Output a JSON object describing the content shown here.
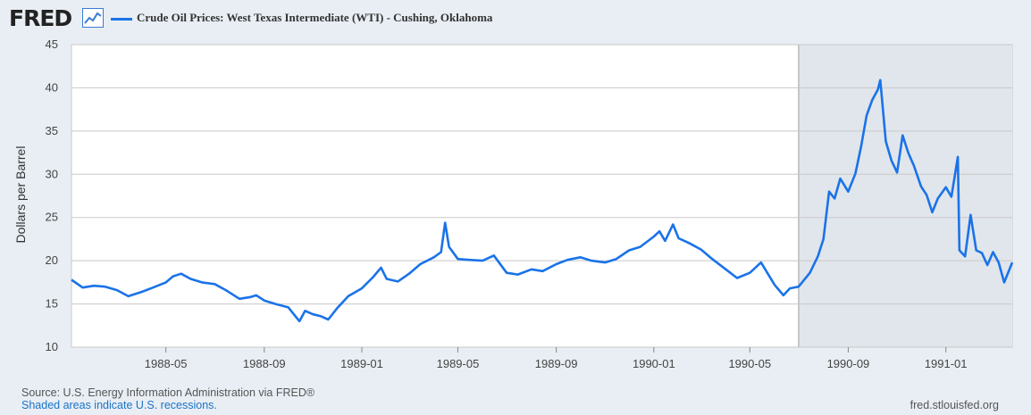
{
  "header": {
    "logo_text": "FRED",
    "logo_icon": "line-chart-icon",
    "legend_label": "Crude Oil Prices: West Texas Intermediate (WTI) - Cushing, Oklahoma"
  },
  "footer": {
    "source": "Source: U.S. Energy Information Administration via FRED®",
    "recession_note": "Shaded areas indicate U.S. recessions.",
    "site": "fred.stlouisfed.org"
  },
  "colors": {
    "series": "#1a73e8",
    "recession_shade": "#e1e6ec",
    "plot_bg": "#ffffff",
    "grid": "#c8c8c8"
  },
  "chart_data": {
    "type": "line",
    "title": "",
    "xlabel": "",
    "ylabel": "Dollars per Barrel",
    "xlim": [
      "1988-01-04",
      "1991-03-25"
    ],
    "ylim": [
      10,
      45
    ],
    "yticks": [
      10,
      15,
      20,
      25,
      30,
      35,
      40,
      45
    ],
    "xtick_labels": [
      "1988-05",
      "1988-09",
      "1989-01",
      "1989-05",
      "1989-09",
      "1990-01",
      "1990-05",
      "1990-09",
      "1991-01"
    ],
    "grid": true,
    "legend_position": "top-left",
    "recessions": [
      {
        "start": "1990-07-01",
        "end": "1991-03-25"
      }
    ],
    "series": [
      {
        "name": "Crude Oil Prices: West Texas Intermediate (WTI) - Cushing, Oklahoma",
        "points": [
          [
            "1988-01-04",
            17.8
          ],
          [
            "1988-01-18",
            16.9
          ],
          [
            "1988-02-01",
            17.1
          ],
          [
            "1988-02-15",
            17.0
          ],
          [
            "1988-03-01",
            16.6
          ],
          [
            "1988-03-15",
            15.9
          ],
          [
            "1988-04-01",
            16.4
          ],
          [
            "1988-04-15",
            16.9
          ],
          [
            "1988-05-01",
            17.5
          ],
          [
            "1988-05-10",
            18.2
          ],
          [
            "1988-05-20",
            18.5
          ],
          [
            "1988-06-01",
            17.9
          ],
          [
            "1988-06-15",
            17.5
          ],
          [
            "1988-07-01",
            17.3
          ],
          [
            "1988-07-15",
            16.6
          ],
          [
            "1988-08-01",
            15.6
          ],
          [
            "1988-08-15",
            15.8
          ],
          [
            "1988-08-22",
            16.0
          ],
          [
            "1988-09-01",
            15.4
          ],
          [
            "1988-09-15",
            15.0
          ],
          [
            "1988-10-01",
            14.6
          ],
          [
            "1988-10-08",
            13.8
          ],
          [
            "1988-10-15",
            13.0
          ],
          [
            "1988-10-22",
            14.2
          ],
          [
            "1988-11-01",
            13.8
          ],
          [
            "1988-11-10",
            13.6
          ],
          [
            "1988-11-20",
            13.2
          ],
          [
            "1988-12-01",
            14.5
          ],
          [
            "1988-12-15",
            15.9
          ],
          [
            "1989-01-01",
            16.8
          ],
          [
            "1989-01-15",
            18.1
          ],
          [
            "1989-01-25",
            19.2
          ],
          [
            "1989-02-01",
            17.9
          ],
          [
            "1989-02-15",
            17.6
          ],
          [
            "1989-03-01",
            18.5
          ],
          [
            "1989-03-15",
            19.6
          ],
          [
            "1989-04-01",
            20.4
          ],
          [
            "1989-04-10",
            21.0
          ],
          [
            "1989-04-15",
            24.4
          ],
          [
            "1989-04-20",
            21.6
          ],
          [
            "1989-05-01",
            20.2
          ],
          [
            "1989-05-15",
            20.1
          ],
          [
            "1989-06-01",
            20.0
          ],
          [
            "1989-06-15",
            20.6
          ],
          [
            "1989-07-01",
            18.6
          ],
          [
            "1989-07-15",
            18.4
          ],
          [
            "1989-08-01",
            19.0
          ],
          [
            "1989-08-15",
            18.8
          ],
          [
            "1989-09-01",
            19.6
          ],
          [
            "1989-09-15",
            20.1
          ],
          [
            "1989-10-01",
            20.4
          ],
          [
            "1989-10-15",
            20.0
          ],
          [
            "1989-11-01",
            19.8
          ],
          [
            "1989-11-15",
            20.2
          ],
          [
            "1989-12-01",
            21.2
          ],
          [
            "1989-12-15",
            21.6
          ],
          [
            "1990-01-01",
            22.8
          ],
          [
            "1990-01-08",
            23.4
          ],
          [
            "1990-01-15",
            22.3
          ],
          [
            "1990-01-25",
            24.2
          ],
          [
            "1990-02-01",
            22.6
          ],
          [
            "1990-02-15",
            22.0
          ],
          [
            "1990-03-01",
            21.3
          ],
          [
            "1990-03-15",
            20.2
          ],
          [
            "1990-04-01",
            19.0
          ],
          [
            "1990-04-15",
            18.0
          ],
          [
            "1990-05-01",
            18.6
          ],
          [
            "1990-05-15",
            19.8
          ],
          [
            "1990-06-01",
            17.2
          ],
          [
            "1990-06-12",
            16.0
          ],
          [
            "1990-06-20",
            16.8
          ],
          [
            "1990-07-01",
            17.0
          ],
          [
            "1990-07-15",
            18.6
          ],
          [
            "1990-07-25",
            20.5
          ],
          [
            "1990-08-01",
            22.5
          ],
          [
            "1990-08-08",
            28.0
          ],
          [
            "1990-08-15",
            27.2
          ],
          [
            "1990-08-22",
            29.5
          ],
          [
            "1990-09-01",
            28.0
          ],
          [
            "1990-09-10",
            30.1
          ],
          [
            "1990-09-17",
            33.2
          ],
          [
            "1990-09-24",
            36.8
          ],
          [
            "1990-10-01",
            38.6
          ],
          [
            "1990-10-08",
            39.8
          ],
          [
            "1990-10-11",
            40.9
          ],
          [
            "1990-10-18",
            33.8
          ],
          [
            "1990-10-25",
            31.6
          ],
          [
            "1990-11-01",
            30.2
          ],
          [
            "1990-11-08",
            34.5
          ],
          [
            "1990-11-15",
            32.5
          ],
          [
            "1990-11-22",
            31.0
          ],
          [
            "1990-12-01",
            28.6
          ],
          [
            "1990-12-08",
            27.6
          ],
          [
            "1990-12-15",
            25.6
          ],
          [
            "1990-12-22",
            27.2
          ],
          [
            "1991-01-01",
            28.5
          ],
          [
            "1991-01-08",
            27.4
          ],
          [
            "1991-01-16",
            32.0
          ],
          [
            "1991-01-18",
            21.2
          ],
          [
            "1991-01-25",
            20.5
          ],
          [
            "1991-02-01",
            25.3
          ],
          [
            "1991-02-08",
            21.2
          ],
          [
            "1991-02-15",
            20.9
          ],
          [
            "1991-02-22",
            19.5
          ],
          [
            "1991-03-01",
            21.0
          ],
          [
            "1991-03-08",
            19.8
          ],
          [
            "1991-03-15",
            17.5
          ],
          [
            "1991-03-25",
            19.8
          ]
        ]
      }
    ]
  }
}
